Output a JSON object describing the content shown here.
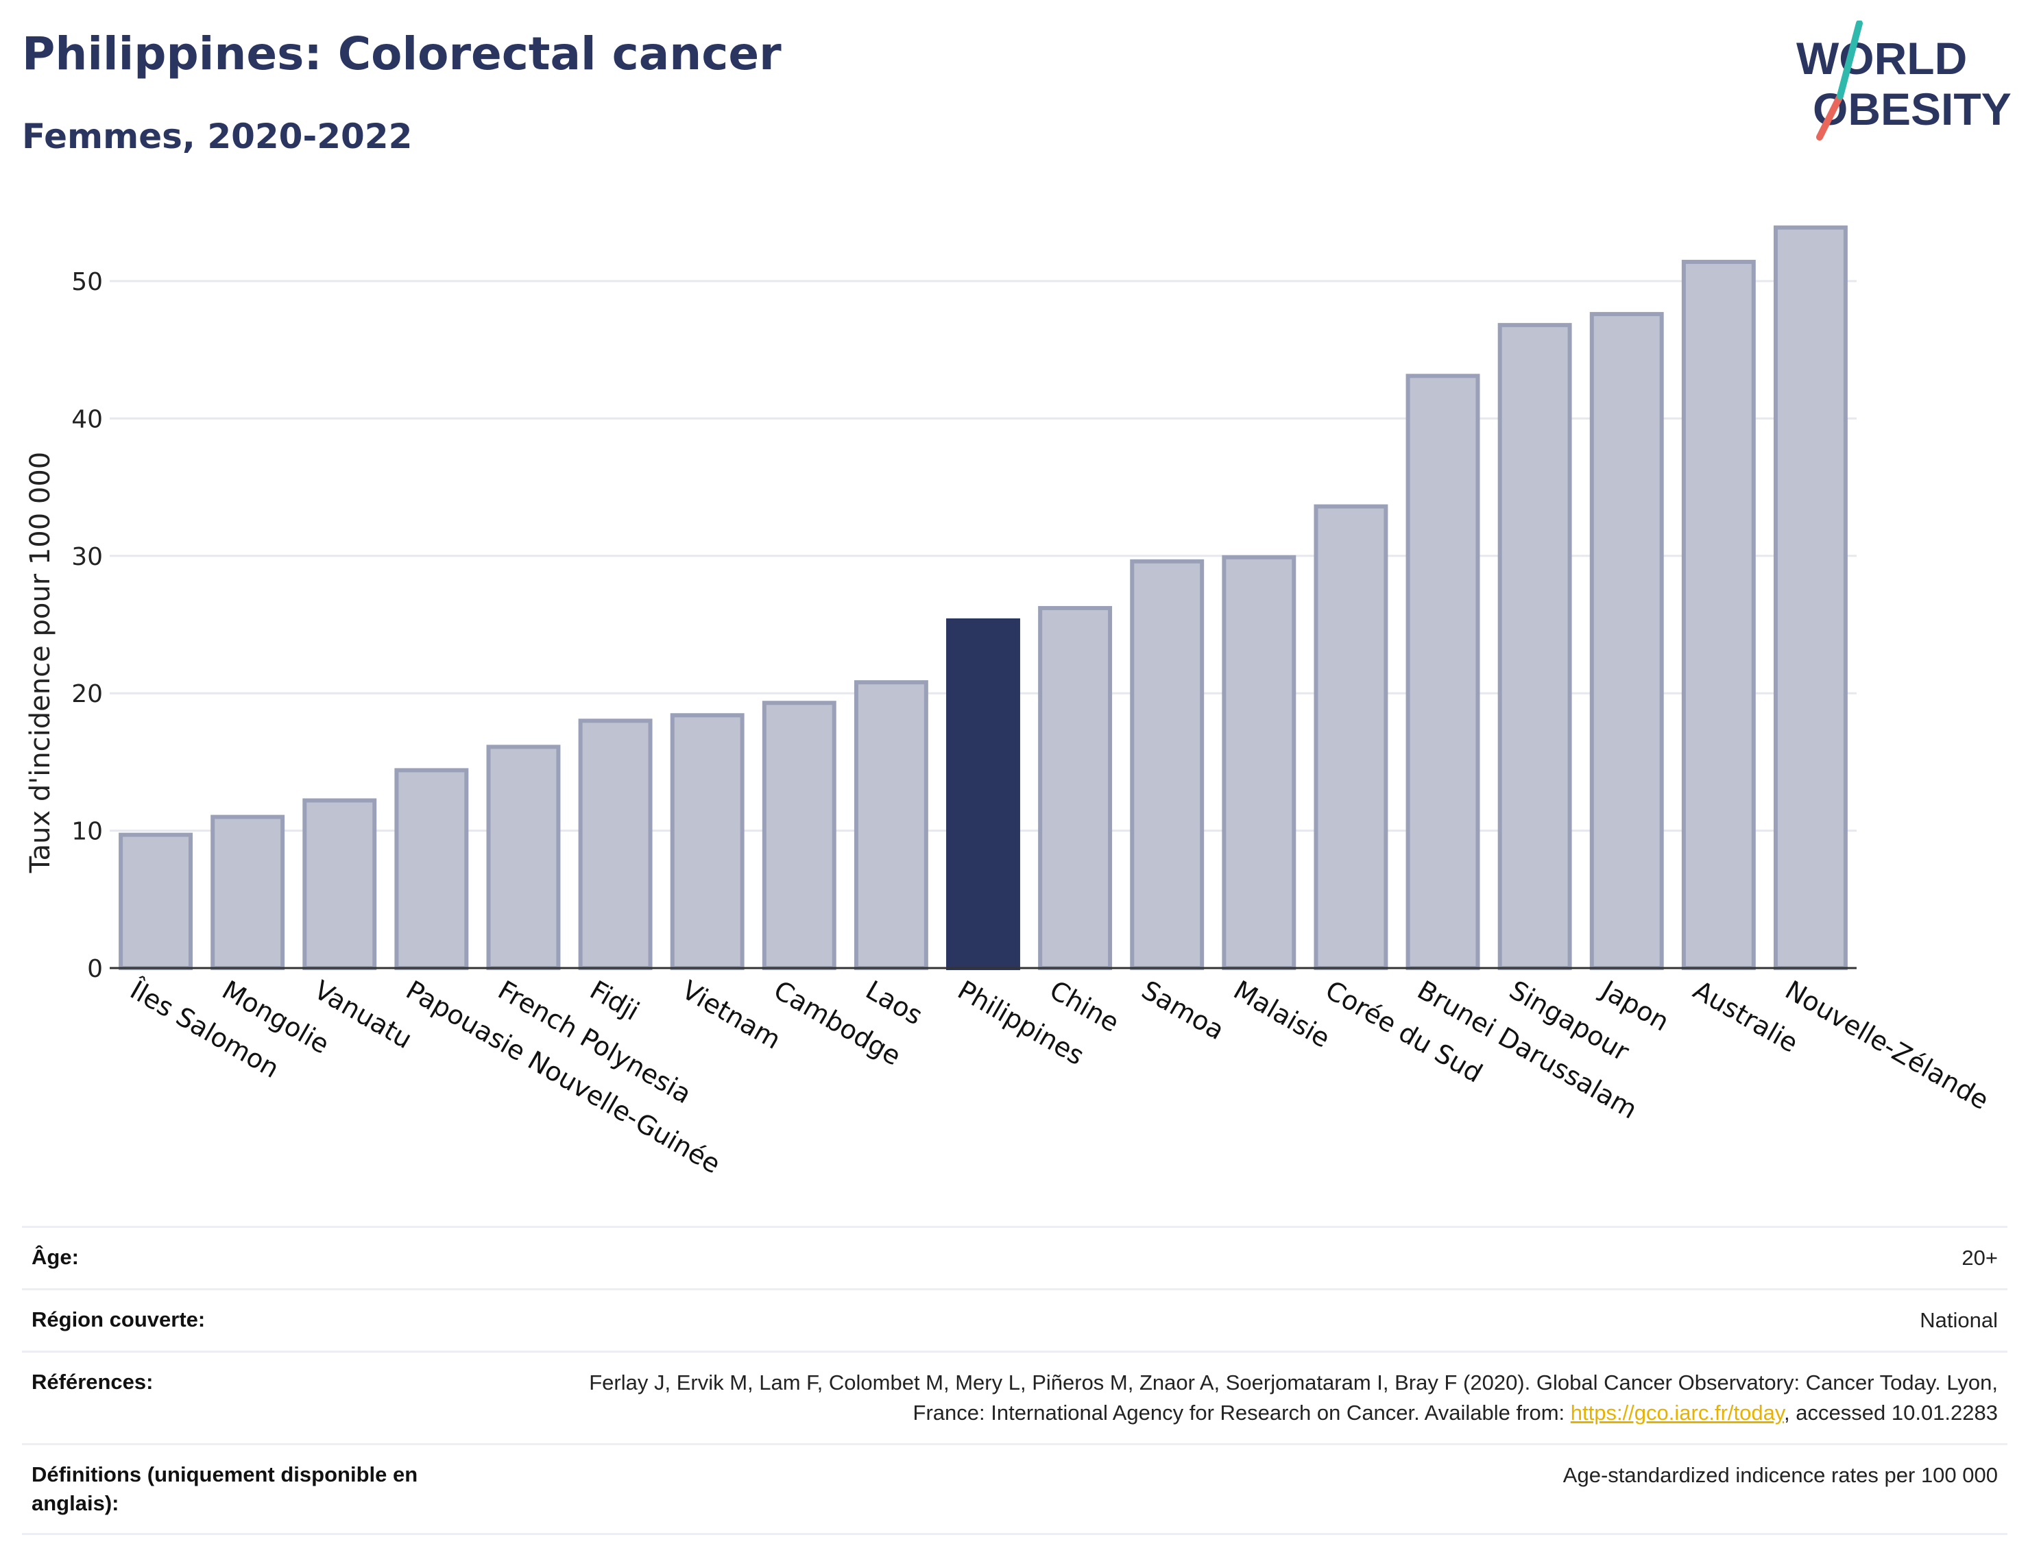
{
  "header": {
    "title": "Philippines: Colorectal cancer",
    "subtitle": "Femmes, 2020-2022"
  },
  "logo": {
    "line1": "WORLD",
    "line2": "OBESITY"
  },
  "colors": {
    "highlight": "#2a3560",
    "bar": "#bec2d1",
    "bar_border": "#9aa0b8",
    "text": "#2a3560",
    "link": "#e8b100"
  },
  "chart_data": {
    "type": "bar",
    "ylabel": "Taux d'incidence pour 100 000",
    "xlabel": "",
    "ylim": [
      0,
      55
    ],
    "yticks": [
      0,
      10,
      20,
      30,
      40,
      50
    ],
    "grid": true,
    "highlight": "Philippines",
    "categories": [
      "Îles Salomon",
      "Mongolie",
      "Vanuatu",
      "Papouasie Nouvelle-Guinée",
      "French Polynesia",
      "Fidji",
      "Vietnam",
      "Cambodge",
      "Laos",
      "Philippines",
      "Chine",
      "Samoa",
      "Malaisie",
      "Corée du Sud",
      "Brunei Darussalam",
      "Singapour",
      "Japon",
      "Australie",
      "Nouvelle-Zélande"
    ],
    "values": [
      9.7,
      11.0,
      12.2,
      14.4,
      16.1,
      18.0,
      18.4,
      19.3,
      20.8,
      25.3,
      26.2,
      29.6,
      29.9,
      33.6,
      43.1,
      46.8,
      47.6,
      51.4,
      53.9
    ]
  },
  "info": {
    "rows": [
      {
        "label": "Âge:",
        "value": "20+"
      },
      {
        "label": "Région couverte:",
        "value": "National"
      },
      {
        "label": "Références:",
        "value": "Ferlay J, Ervik M, Lam F, Colombet M, Mery L, Piñeros M, Znaor A, Soerjomataram I, Bray F (2020). Global Cancer Observatory: Cancer Today. Lyon, France: International Agency for Research on Cancer. Available from: ",
        "link": "https://gco.iarc.fr/today",
        "suffix": ", accessed 10.01.2283"
      },
      {
        "label": "Définitions (uniquement disponible en anglais):",
        "value": "Age-standardized indicence rates per 100 000"
      }
    ]
  }
}
